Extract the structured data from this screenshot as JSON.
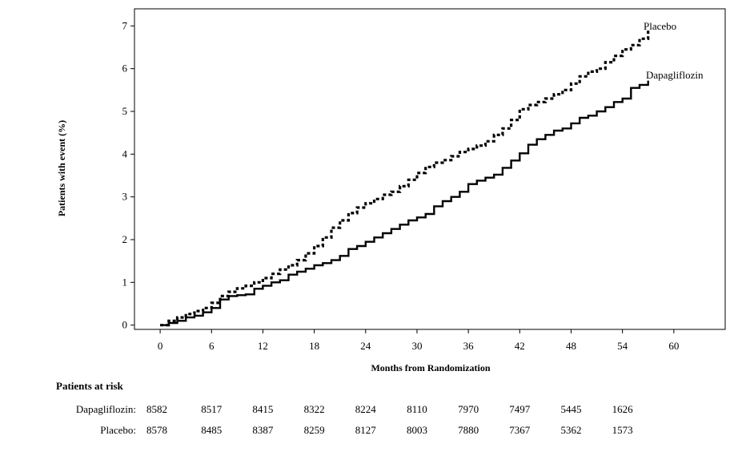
{
  "chart_data": {
    "type": "line",
    "xlabel": "Months from Randomization",
    "ylabel": "Patients with event (%)",
    "xlim": [
      -3,
      66
    ],
    "ylim": [
      -0.1,
      7.4
    ],
    "xticks": [
      0,
      6,
      12,
      18,
      24,
      30,
      36,
      42,
      48,
      54,
      60
    ],
    "yticks": [
      0,
      1,
      2,
      3,
      4,
      5,
      6,
      7
    ],
    "grid": false,
    "legend": "inline labels at line ends",
    "series": [
      {
        "name": "Placebo",
        "style": "dotted",
        "x": [
          0,
          1,
          2,
          3,
          4,
          5,
          6,
          7,
          8,
          9,
          10,
          11,
          12,
          13,
          14,
          15,
          16,
          17,
          18,
          19,
          20,
          21,
          22,
          23,
          24,
          25,
          26,
          27,
          28,
          29,
          30,
          31,
          32,
          33,
          34,
          35,
          36,
          37,
          38,
          39,
          40,
          41,
          42,
          43,
          44,
          45,
          46,
          47,
          48,
          49,
          50,
          51,
          52,
          53,
          54,
          55,
          56,
          57
        ],
        "values": [
          0,
          0.1,
          0.18,
          0.26,
          0.33,
          0.4,
          0.52,
          0.68,
          0.78,
          0.86,
          0.92,
          1.0,
          1.1,
          1.2,
          1.3,
          1.4,
          1.52,
          1.68,
          1.85,
          2.05,
          2.28,
          2.45,
          2.62,
          2.75,
          2.85,
          2.95,
          3.05,
          3.12,
          3.25,
          3.4,
          3.56,
          3.7,
          3.8,
          3.86,
          3.95,
          4.05,
          4.12,
          4.2,
          4.3,
          4.45,
          4.6,
          4.8,
          5.05,
          5.15,
          5.22,
          5.3,
          5.4,
          5.5,
          5.65,
          5.82,
          5.93,
          6.0,
          6.15,
          6.3,
          6.45,
          6.55,
          6.7,
          6.9
        ]
      },
      {
        "name": "Dapagliflozin",
        "style": "solid",
        "x": [
          0,
          1,
          2,
          3,
          4,
          5,
          6,
          7,
          8,
          9,
          10,
          11,
          12,
          13,
          14,
          15,
          16,
          17,
          18,
          19,
          20,
          21,
          22,
          23,
          24,
          25,
          26,
          27,
          28,
          29,
          30,
          31,
          32,
          33,
          34,
          35,
          36,
          37,
          38,
          39,
          40,
          41,
          42,
          43,
          44,
          45,
          46,
          47,
          48,
          49,
          50,
          51,
          52,
          53,
          54,
          55,
          56,
          57
        ],
        "values": [
          0,
          0.05,
          0.1,
          0.18,
          0.22,
          0.3,
          0.4,
          0.6,
          0.68,
          0.7,
          0.72,
          0.85,
          0.92,
          1.0,
          1.05,
          1.18,
          1.25,
          1.32,
          1.4,
          1.45,
          1.52,
          1.62,
          1.78,
          1.85,
          1.95,
          2.05,
          2.15,
          2.25,
          2.35,
          2.45,
          2.52,
          2.6,
          2.78,
          2.9,
          3.0,
          3.12,
          3.3,
          3.38,
          3.45,
          3.52,
          3.68,
          3.85,
          4.02,
          4.22,
          4.35,
          4.45,
          4.55,
          4.6,
          4.72,
          4.85,
          4.9,
          5.0,
          5.1,
          5.22,
          5.3,
          5.55,
          5.62,
          5.72
        ]
      }
    ],
    "series_labels": [
      "Placebo",
      "Dapagliflozin"
    ],
    "risk_table": {
      "title": "Patients at risk",
      "timepoints": [
        0,
        6,
        12,
        18,
        24,
        30,
        36,
        42,
        48,
        54
      ],
      "rows": [
        {
          "label": "Dapagliflozin:",
          "values": [
            "8582",
            "8517",
            "8415",
            "8322",
            "8224",
            "8110",
            "7970",
            "7497",
            "5445",
            "1626"
          ]
        },
        {
          "label": "Placebo:",
          "values": [
            "8578",
            "8485",
            "8387",
            "8259",
            "8127",
            "8003",
            "7880",
            "7367",
            "5362",
            "1573"
          ]
        }
      ]
    }
  }
}
